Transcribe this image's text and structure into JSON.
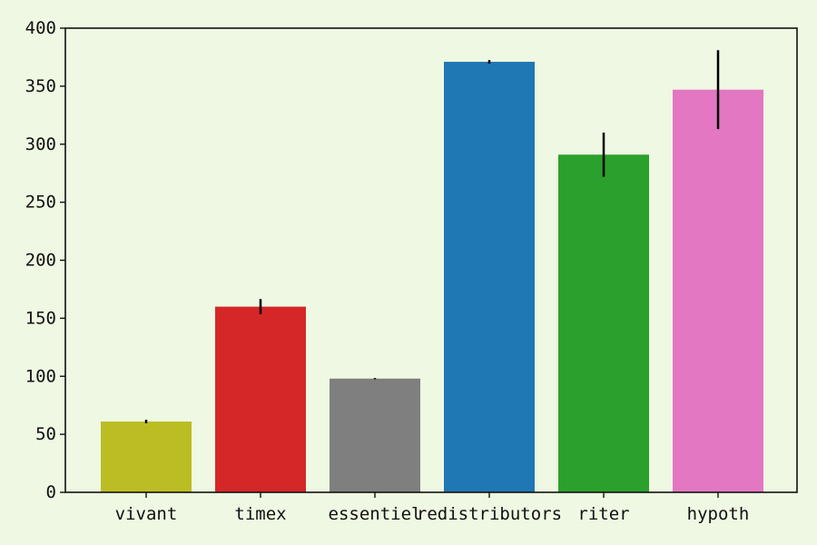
{
  "chart_data": {
    "type": "bar",
    "categories": [
      "vivant",
      "timex",
      "essentiel",
      "redistributors",
      "riter",
      "hypoth"
    ],
    "values": [
      61,
      160,
      98,
      371,
      291,
      347
    ],
    "errors": [
      1.5,
      6.5,
      0.5,
      1.5,
      19,
      34
    ],
    "colors": [
      "#bcbd22",
      "#d62728",
      "#7f7f7f",
      "#1f77b4",
      "#2ca02c",
      "#e377c2"
    ],
    "ylim": [
      0,
      400
    ],
    "yticks": [
      0,
      50,
      100,
      150,
      200,
      250,
      300,
      350,
      400
    ],
    "title": "",
    "xlabel": "",
    "ylabel": "",
    "grid": false
  }
}
